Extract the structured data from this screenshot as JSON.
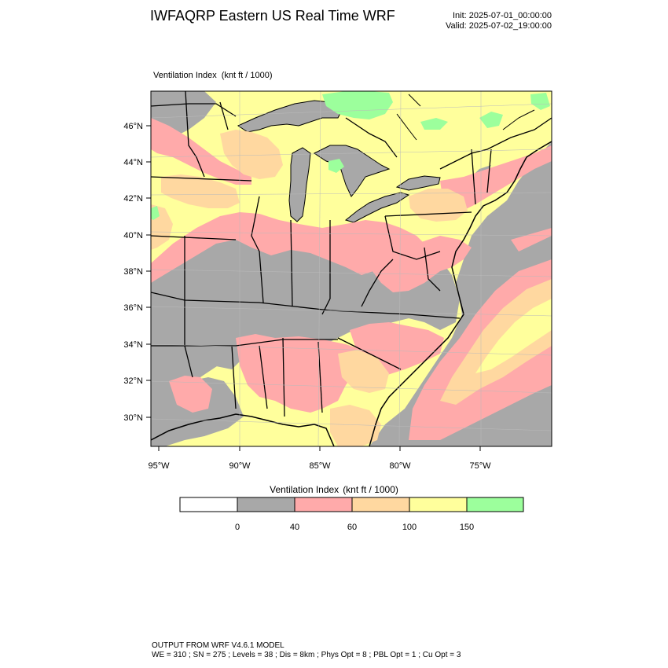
{
  "header": {
    "title": "IWFAQRP Eastern US Real Time WRF",
    "init": "Init: 2025-07-01_00:00:00",
    "valid": "Valid: 2025-07-02_19:00:00"
  },
  "map": {
    "field": "Ventilation Index",
    "units": "(knt ft / 1000)",
    "lat_labels": [
      "46°N",
      "44°N",
      "42°N",
      "40°N",
      "38°N",
      "36°N",
      "34°N",
      "32°N",
      "30°N"
    ],
    "lon_labels": [
      "95°W",
      "90°W",
      "85°W",
      "80°W",
      "75°W"
    ]
  },
  "colorbar": {
    "title": "Ventilation Index",
    "units": "(knt ft / 1000)",
    "tick_labels": [
      "0",
      "40",
      "60",
      "100",
      "150"
    ],
    "colors": [
      "#ffffff",
      "#a8a8a8",
      "#ffaaaa",
      "#ffd8a0",
      "#ffff9c",
      "#9cff9c"
    ]
  },
  "footer": {
    "line1": "OUTPUT FROM WRF V4.6.1 MODEL",
    "line2": "WE = 310 ; SN = 275 ; Levels = 38 ; Dis = 8km ; Phys Opt = 8 ; PBL Opt = 1 ; Cu Opt = 3"
  }
}
